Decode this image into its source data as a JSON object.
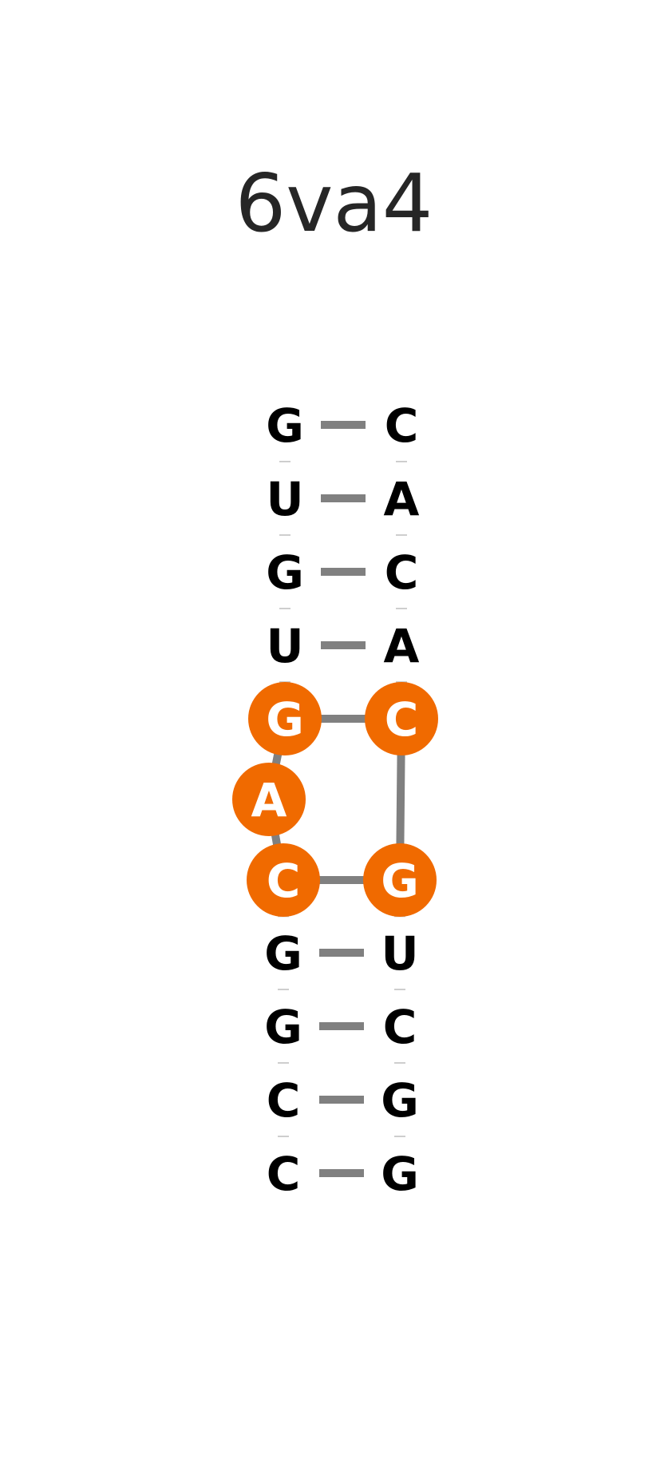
{
  "title": "6va4",
  "colors": {
    "highlight": "#f06a00",
    "bond": "#808080",
    "text": "#000000",
    "highlight_text": "#ffffff"
  },
  "strand_left": [
    "G",
    "U",
    "G",
    "U",
    "G",
    "A",
    "C",
    "G",
    "G",
    "C",
    "C"
  ],
  "strand_right": [
    "C",
    "A",
    "C",
    "A",
    "C",
    "G",
    "U",
    "C",
    "G",
    "G"
  ],
  "highlighted": {
    "left": [
      4,
      5,
      6
    ],
    "right": [
      4,
      5
    ]
  },
  "pairs": [
    [
      "G",
      "C"
    ],
    [
      "U",
      "A"
    ],
    [
      "G",
      "C"
    ],
    [
      "U",
      "A"
    ],
    [
      "G",
      "C"
    ],
    [
      "C",
      "G"
    ],
    [
      "G",
      "U"
    ],
    [
      "G",
      "C"
    ],
    [
      "C",
      "G"
    ],
    [
      "C",
      "G"
    ]
  ]
}
